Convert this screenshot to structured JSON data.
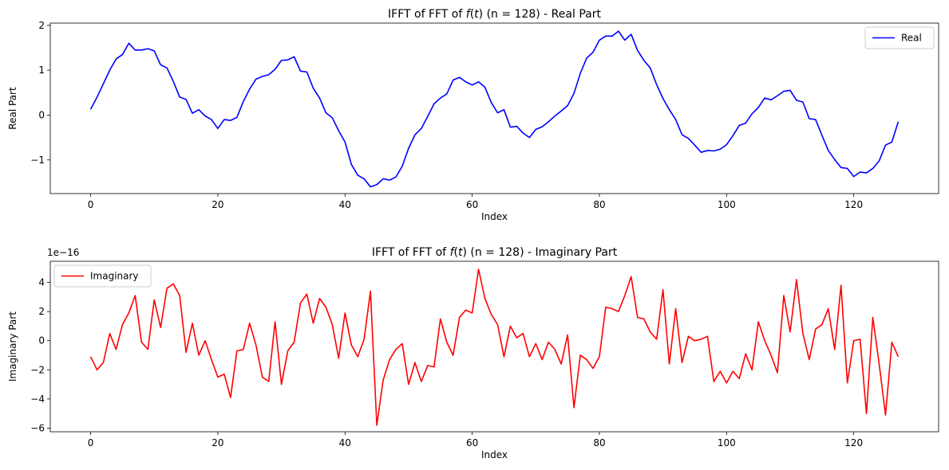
{
  "chart_data": [
    {
      "type": "line",
      "title": "IFFT of FFT of f(t) (n = 128) - Real Part",
      "title_parts": {
        "pre": "IFFT of FFT of ",
        "fn": "f",
        "mid": "(",
        "arg": "t",
        "post": ") (n = 128) - Real Part"
      },
      "xlabel": "Index",
      "ylabel": "Real Part",
      "xlim": [
        -6.35,
        133.35
      ],
      "ylim": [
        -1.75,
        2.05
      ],
      "xticks": [
        0,
        20,
        40,
        60,
        80,
        100,
        120
      ],
      "yticks": [
        -1,
        0,
        1,
        2
      ],
      "ytick_labels": [
        "−1",
        "0",
        "1",
        "2"
      ],
      "offset_text": "",
      "legend_position": "upper-right",
      "grid": false,
      "series": [
        {
          "name": "Real",
          "color": "#0000ff",
          "y": [
            0.13,
            0.4,
            0.7,
            1.0,
            1.25,
            1.35,
            1.6,
            1.45,
            1.45,
            1.48,
            1.43,
            1.12,
            1.05,
            0.75,
            0.4,
            0.35,
            0.04,
            0.12,
            -0.02,
            -0.1,
            -0.3,
            -0.1,
            -0.12,
            -0.05,
            0.3,
            0.58,
            0.8,
            0.86,
            0.9,
            1.02,
            1.22,
            1.23,
            1.3,
            0.98,
            0.96,
            0.6,
            0.38,
            0.05,
            -0.06,
            -0.35,
            -0.6,
            -1.1,
            -1.34,
            -1.42,
            -1.6,
            -1.55,
            -1.42,
            -1.45,
            -1.38,
            -1.14,
            -0.74,
            -0.44,
            -0.3,
            -0.03,
            0.25,
            0.38,
            0.47,
            0.78,
            0.84,
            0.74,
            0.67,
            0.74,
            0.62,
            0.28,
            0.05,
            0.12,
            -0.27,
            -0.25,
            -0.4,
            -0.5,
            -0.32,
            -0.26,
            -0.15,
            -0.02,
            0.09,
            0.21,
            0.48,
            0.93,
            1.27,
            1.4,
            1.67,
            1.76,
            1.76,
            1.87,
            1.67,
            1.8,
            1.44,
            1.22,
            1.05,
            0.68,
            0.37,
            0.12,
            -0.1,
            -0.44,
            -0.52,
            -0.67,
            -0.83,
            -0.79,
            -0.8,
            -0.76,
            -0.66,
            -0.46,
            -0.23,
            -0.18,
            0.03,
            0.17,
            0.38,
            0.34,
            0.43,
            0.53,
            0.55,
            0.33,
            0.29,
            -0.08,
            -0.1,
            -0.45,
            -0.79,
            -0.99,
            -1.17,
            -1.19,
            -1.37,
            -1.27,
            -1.29,
            -1.19,
            -1.02,
            -0.67,
            -0.6,
            -0.15
          ]
        }
      ]
    },
    {
      "type": "line",
      "title": "IFFT of FFT of f(t) (n = 128) - Imaginary Part",
      "title_parts": {
        "pre": "IFFT of FFT of ",
        "fn": "f",
        "mid": "(",
        "arg": "t",
        "post": ") (n = 128) - Imaginary Part"
      },
      "xlabel": "Index",
      "ylabel": "Imaginary Part",
      "xlim": [
        -6.35,
        133.35
      ],
      "ylim": [
        -6.25,
        5.45
      ],
      "xticks": [
        0,
        20,
        40,
        60,
        80,
        100,
        120
      ],
      "yticks": [
        -6,
        -4,
        -2,
        0,
        2,
        4
      ],
      "ytick_labels": [
        "−6",
        "−4",
        "−2",
        "0",
        "2",
        "4"
      ],
      "offset_text": "1e−16",
      "legend_position": "upper-left",
      "grid": false,
      "series": [
        {
          "name": "Imaginary",
          "color": "#ff0000",
          "y": [
            -1.1,
            -2.0,
            -1.5,
            0.5,
            -0.6,
            1.1,
            1.9,
            3.1,
            -0.1,
            -0.6,
            2.8,
            0.9,
            3.6,
            3.9,
            3.1,
            -0.8,
            1.2,
            -1.0,
            0.0,
            -1.3,
            -2.5,
            -2.3,
            -3.9,
            -0.7,
            -0.6,
            1.2,
            -0.3,
            -2.5,
            -2.8,
            1.3,
            -3.0,
            -0.7,
            -0.1,
            2.6,
            3.2,
            1.2,
            2.9,
            2.3,
            1.1,
            -1.2,
            1.9,
            -0.3,
            -1.1,
            0.1,
            3.4,
            -5.8,
            -2.7,
            -1.3,
            -0.6,
            -0.2,
            -3.0,
            -1.5,
            -2.8,
            -1.7,
            -1.8,
            1.5,
            -0.1,
            -1.0,
            1.6,
            2.1,
            1.9,
            4.9,
            2.9,
            1.8,
            1.1,
            -1.1,
            1.0,
            0.2,
            0.5,
            -1.1,
            -0.2,
            -1.3,
            -0.1,
            -0.6,
            -1.6,
            0.4,
            -4.6,
            -1.0,
            -1.3,
            -1.9,
            -1.1,
            2.3,
            2.2,
            2.0,
            3.1,
            4.4,
            1.6,
            1.5,
            0.6,
            0.1,
            3.5,
            -1.6,
            2.2,
            -1.5,
            0.3,
            0.0,
            0.1,
            0.3,
            -2.8,
            -2.1,
            -2.9,
            -2.1,
            -2.6,
            -0.9,
            -2.0,
            1.3,
            0.0,
            -1.0,
            -2.2,
            3.1,
            0.6,
            4.2,
            0.5,
            -1.3,
            0.8,
            1.1,
            2.2,
            -0.6,
            3.8,
            -2.9,
            0.0,
            0.1,
            -5.0,
            1.6,
            -1.6,
            -5.1,
            -0.1,
            -1.1
          ]
        }
      ]
    }
  ]
}
